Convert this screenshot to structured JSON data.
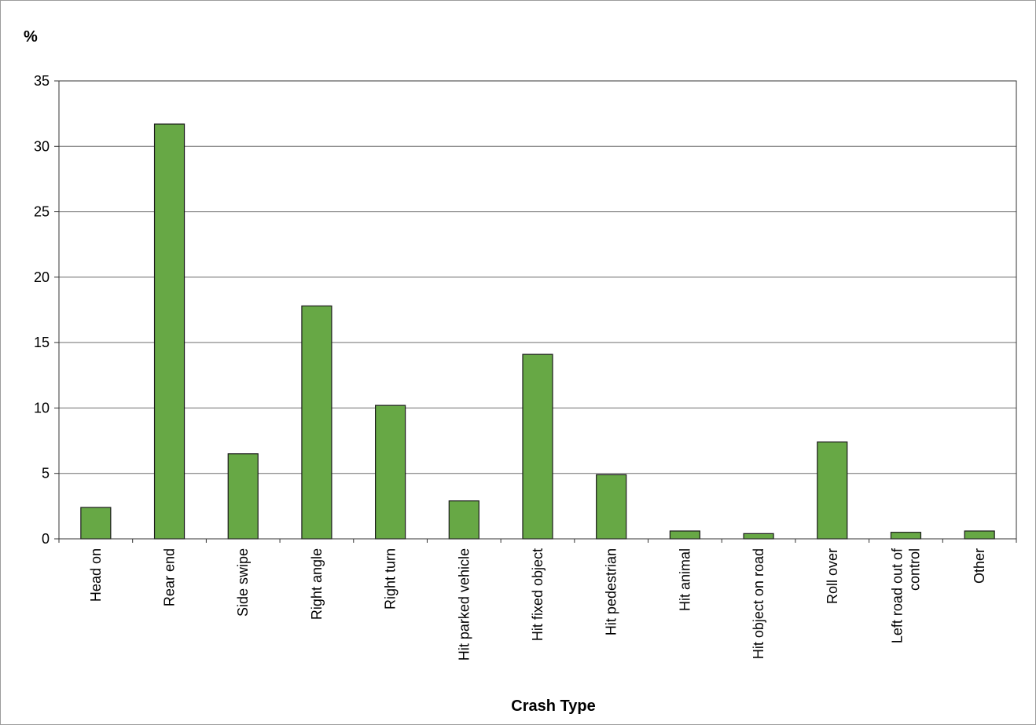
{
  "chart_data": {
    "type": "bar",
    "title": "",
    "ylabel": "%",
    "xlabel": "Crash Type",
    "ylim": [
      0,
      35
    ],
    "yticks": [
      0,
      5,
      10,
      15,
      20,
      25,
      30,
      35
    ],
    "grid": true,
    "categories": [
      [
        "Head on"
      ],
      [
        "Rear end"
      ],
      [
        "Side swipe"
      ],
      [
        "Right angle"
      ],
      [
        "Right turn"
      ],
      [
        "Hit parked vehicle"
      ],
      [
        "Hit fixed object"
      ],
      [
        "Hit pedestrian"
      ],
      [
        "Hit animal"
      ],
      [
        "Hit object on road"
      ],
      [
        "Roll over"
      ],
      [
        "Left road out of",
        "control"
      ],
      [
        "Other"
      ]
    ],
    "values": [
      2.4,
      31.7,
      6.5,
      17.8,
      10.2,
      2.9,
      14.1,
      4.9,
      0.6,
      0.4,
      7.4,
      0.5,
      0.6
    ],
    "bar_color": "#67a845",
    "bar_edge_color": "#1a1a1a",
    "grid_color": "#6e6e6e"
  }
}
